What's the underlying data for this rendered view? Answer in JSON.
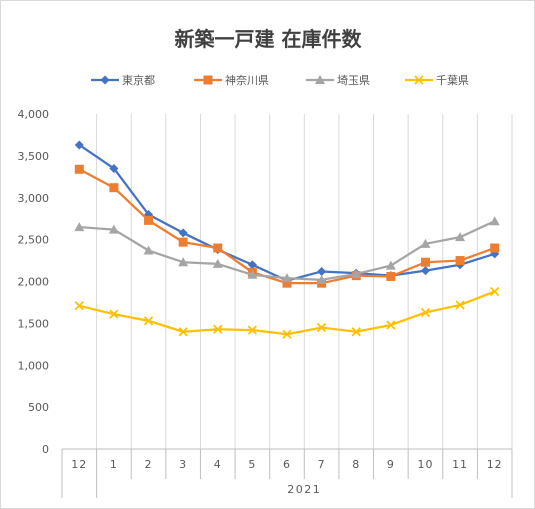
{
  "chart_data": {
    "type": "line",
    "title": "新築一戸建 在庫件数",
    "categories": [
      "12",
      "1",
      "2",
      "3",
      "4",
      "5",
      "6",
      "7",
      "8",
      "9",
      "10",
      "11",
      "12"
    ],
    "group_label": "2021",
    "ylim": [
      0,
      4000
    ],
    "yticks": [
      "0",
      "500",
      "1,000",
      "1,500",
      "2,000",
      "2,500",
      "3,000",
      "3,500",
      "4,000"
    ],
    "legend_position": "top",
    "grid": "vertical",
    "series": [
      {
        "name": "東京都",
        "color": "#4472C4",
        "marker": "diamond",
        "values": [
          3630,
          3350,
          2800,
          2580,
          2380,
          2200,
          2010,
          2120,
          2100,
          2070,
          2130,
          2200,
          2330
        ]
      },
      {
        "name": "神奈川県",
        "color": "#ED7D31",
        "marker": "square",
        "values": [
          3340,
          3120,
          2730,
          2470,
          2400,
          2110,
          1980,
          1980,
          2070,
          2060,
          2230,
          2250,
          2400
        ]
      },
      {
        "name": "埼玉県",
        "color": "#A5A5A5",
        "marker": "triangle",
        "values": [
          2650,
          2620,
          2370,
          2230,
          2210,
          2080,
          2040,
          2020,
          2090,
          2190,
          2450,
          2530,
          2720
        ]
      },
      {
        "name": "千葉県",
        "color": "#FFC000",
        "marker": "x",
        "values": [
          1710,
          1610,
          1530,
          1400,
          1430,
          1420,
          1370,
          1450,
          1400,
          1480,
          1630,
          1720,
          1880
        ]
      }
    ]
  }
}
